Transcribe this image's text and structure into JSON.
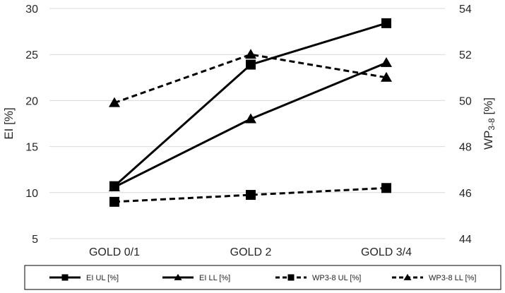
{
  "chart_data": {
    "type": "line",
    "categories": [
      "GOLD 0/1",
      "GOLD 2",
      "GOLD 3/4"
    ],
    "y_left": {
      "label": "EI [%]",
      "ylim": [
        5,
        30
      ],
      "ticks": [
        5,
        10,
        15,
        20,
        25,
        30
      ]
    },
    "y_right": {
      "label_main": "WP",
      "label_sub": "3-8",
      "label_unit": " [%]",
      "ylim": [
        44,
        54
      ],
      "ticks": [
        44,
        46,
        48,
        50,
        52,
        54
      ]
    },
    "grid": "horizontal",
    "legend_position": "bottom",
    "series": [
      {
        "name": "EI UL [%]",
        "axis": "left",
        "values": [
          10.7,
          23.9,
          28.4
        ],
        "marker": "square",
        "line_style": "solid"
      },
      {
        "name": "EI LL [%]",
        "axis": "left",
        "values": [
          10.6,
          18.0,
          24.1
        ],
        "marker": "triangle",
        "line_style": "solid"
      },
      {
        "name": "WP3-8 UL [%]",
        "axis": "right",
        "values": [
          45.6,
          45.9,
          46.2
        ],
        "marker": "square",
        "line_style": "dashed"
      },
      {
        "name": "WP3-8 LL [%]",
        "axis": "right",
        "values": [
          49.9,
          52.0,
          51.0
        ],
        "marker": "triangle",
        "line_style": "dashed"
      }
    ],
    "colors": {
      "line": "#000000",
      "grid": "#d9d9d9",
      "text": "#262626"
    }
  }
}
